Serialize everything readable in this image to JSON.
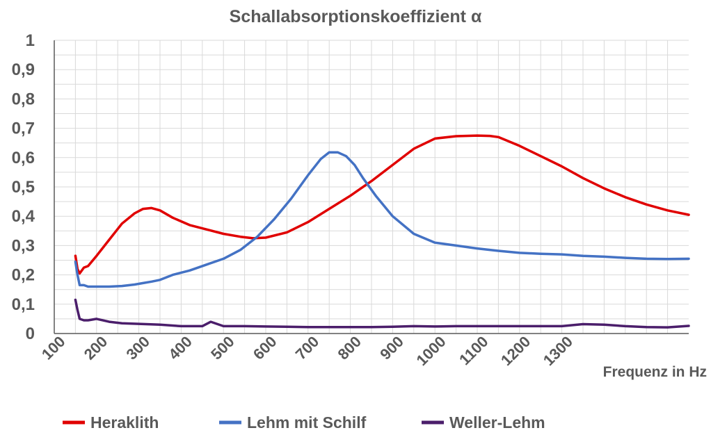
{
  "chart_data": {
    "type": "line",
    "title": "Schallabsorptionskoeffizient α",
    "xlabel": "Frequenz  in Hz",
    "ylabel": "",
    "xlim": [
      100,
      1600
    ],
    "ylim": [
      0,
      1
    ],
    "x_ticks": [
      "100",
      "200",
      "300",
      "400",
      "500",
      "600",
      "700",
      "800",
      "900",
      "1000",
      "1100",
      "1200",
      "1300"
    ],
    "y_ticks": [
      "0",
      "0,1",
      "0,2",
      "0,3",
      "0,4",
      "0,5",
      "0,6",
      "0,7",
      "0,8",
      "0,9",
      "1"
    ],
    "grid": true,
    "legend_position": "bottom",
    "series": [
      {
        "name": "Heraklith",
        "color": "#e00000",
        "x": [
          150,
          155,
          160,
          170,
          180,
          200,
          230,
          260,
          290,
          310,
          330,
          350,
          380,
          420,
          460,
          500,
          540,
          570,
          600,
          650,
          700,
          750,
          800,
          850,
          900,
          950,
          1000,
          1050,
          1100,
          1130,
          1150,
          1200,
          1250,
          1300,
          1350,
          1400,
          1450,
          1500,
          1550,
          1600
        ],
        "y": [
          0.265,
          0.22,
          0.205,
          0.225,
          0.23,
          0.265,
          0.32,
          0.375,
          0.41,
          0.425,
          0.428,
          0.42,
          0.395,
          0.37,
          0.355,
          0.34,
          0.33,
          0.325,
          0.327,
          0.345,
          0.38,
          0.425,
          0.47,
          0.52,
          0.575,
          0.63,
          0.665,
          0.673,
          0.675,
          0.674,
          0.67,
          0.64,
          0.605,
          0.57,
          0.53,
          0.495,
          0.465,
          0.44,
          0.42,
          0.405
        ]
      },
      {
        "name": "Lehm mit Schilf",
        "color": "#4472c4",
        "x": [
          150,
          155,
          160,
          170,
          180,
          200,
          230,
          260,
          290,
          310,
          330,
          350,
          380,
          420,
          460,
          500,
          540,
          580,
          620,
          660,
          700,
          730,
          750,
          770,
          790,
          810,
          830,
          860,
          900,
          950,
          1000,
          1050,
          1100,
          1150,
          1200,
          1250,
          1300,
          1350,
          1400,
          1450,
          1500,
          1550,
          1600
        ],
        "y": [
          0.245,
          0.2,
          0.165,
          0.165,
          0.16,
          0.16,
          0.16,
          0.162,
          0.167,
          0.172,
          0.177,
          0.183,
          0.2,
          0.215,
          0.235,
          0.255,
          0.285,
          0.33,
          0.39,
          0.46,
          0.54,
          0.595,
          0.618,
          0.618,
          0.605,
          0.575,
          0.53,
          0.47,
          0.4,
          0.34,
          0.31,
          0.3,
          0.29,
          0.282,
          0.275,
          0.272,
          0.27,
          0.265,
          0.262,
          0.258,
          0.255,
          0.254,
          0.255
        ]
      },
      {
        "name": "Weller-Lehm",
        "color": "#4b1e6b",
        "x": [
          150,
          155,
          160,
          170,
          180,
          200,
          230,
          260,
          300,
          350,
          400,
          450,
          470,
          500,
          550,
          600,
          650,
          700,
          750,
          800,
          850,
          900,
          950,
          1000,
          1050,
          1100,
          1150,
          1200,
          1250,
          1300,
          1350,
          1400,
          1450,
          1500,
          1550,
          1600
        ],
        "y": [
          0.115,
          0.08,
          0.05,
          0.045,
          0.045,
          0.05,
          0.04,
          0.035,
          0.033,
          0.03,
          0.025,
          0.025,
          0.04,
          0.025,
          0.025,
          0.024,
          0.023,
          0.022,
          0.022,
          0.022,
          0.022,
          0.023,
          0.025,
          0.024,
          0.025,
          0.025,
          0.025,
          0.025,
          0.025,
          0.025,
          0.032,
          0.03,
          0.025,
          0.022,
          0.021,
          0.026
        ]
      }
    ]
  }
}
